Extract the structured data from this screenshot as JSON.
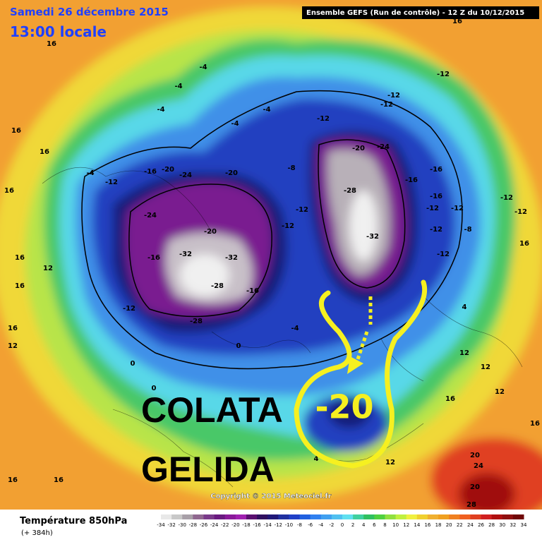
{
  "header": {
    "date": "Samedi 26 décembre 2015",
    "time": "13:00 locale",
    "run": "Ensemble GEFS (Run de contrôle)  -  12 Z du 10/12/2015"
  },
  "annotations": {
    "line1": "COLATA",
    "line2": "GELIDA",
    "value": "-20"
  },
  "copyright": "Copyright © 2015 Meteociel.fr",
  "footer": {
    "title": "Température 850hPa",
    "lead": "(+ 384h)"
  },
  "colorbar": {
    "ticks": [
      -34,
      -32,
      -30,
      -28,
      -26,
      -24,
      -22,
      -20,
      -18,
      -16,
      -14,
      -12,
      -10,
      -8,
      -6,
      -4,
      -2,
      0,
      2,
      4,
      6,
      8,
      10,
      12,
      14,
      16,
      18,
      20,
      22,
      24,
      26,
      28,
      30,
      32,
      34
    ],
    "colors": [
      "#e8e8e8",
      "#c8c8c8",
      "#a8a0a8",
      "#906890",
      "#7a3a8a",
      "#6a1a80",
      "#8a1a9a",
      "#a020b0",
      "#5a1070",
      "#301060",
      "#201878",
      "#2030a0",
      "#2040c8",
      "#2060e0",
      "#3080f0",
      "#40a0f0",
      "#50c0f0",
      "#60e0f0",
      "#40d0a0",
      "#30c060",
      "#50d040",
      "#90e040",
      "#c0f040",
      "#f0f040",
      "#f0d030",
      "#f0b030",
      "#f0a020",
      "#f08020",
      "#f06020",
      "#e04020",
      "#d02020",
      "#b01010",
      "#901010",
      "#700808"
    ]
  },
  "contour_labels": [
    16,
    -4,
    -4,
    -4,
    -4,
    -4,
    16,
    16,
    16,
    -4,
    -12,
    -16,
    -20,
    -24,
    -20,
    -24,
    -20,
    -32,
    -32,
    -28,
    -16,
    -28,
    -12,
    -16,
    16,
    12,
    16,
    -8,
    -12,
    -12,
    -12,
    -12,
    -12,
    -12,
    -24,
    -20,
    -28,
    -32,
    -16,
    -16,
    -16,
    -12,
    -12,
    -12,
    -8,
    -12,
    -12,
    -12,
    16,
    4,
    12,
    12,
    12,
    16,
    20,
    24,
    20,
    28,
    16,
    12,
    0,
    0,
    -4,
    0,
    4,
    16,
    12,
    16,
    16,
    16
  ]
}
